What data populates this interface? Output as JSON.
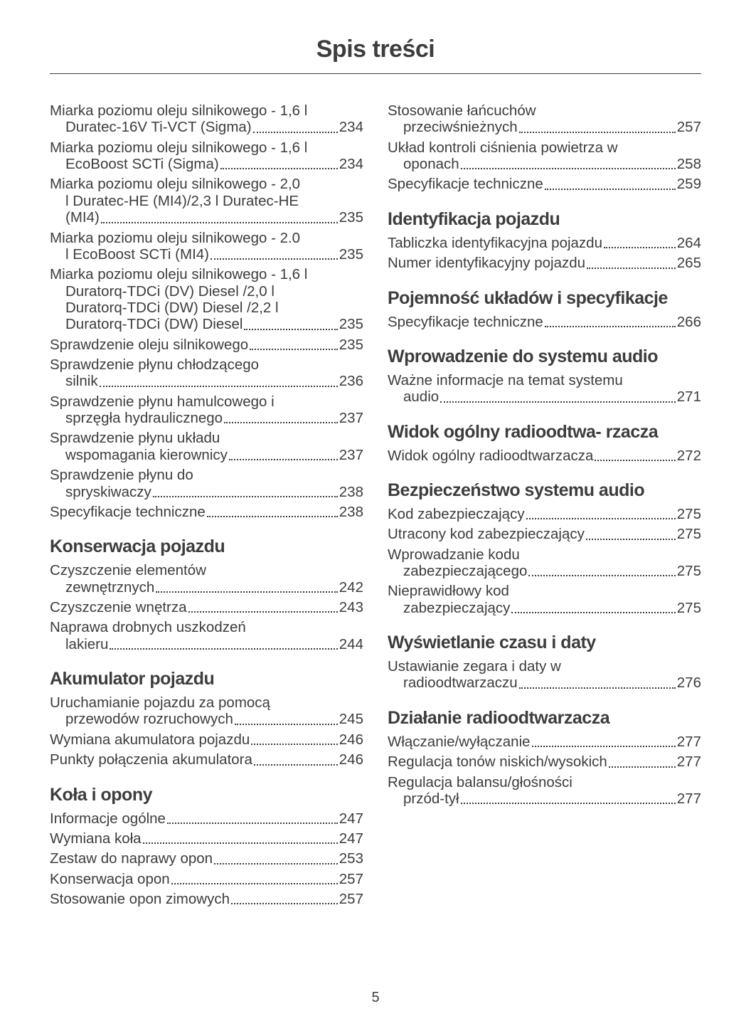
{
  "pageTitle": "Spis treści",
  "footerPage": "5",
  "leftSections": [
    {
      "heading": null,
      "entries": [
        {
          "lines": [
            "Miarka poziomu oleju silnikowego - 1,6 l"
          ],
          "last": "Duratec-16V Ti-VCT (Sigma)",
          "page": "234"
        },
        {
          "lines": [
            "Miarka poziomu oleju silnikowego - 1,6 l"
          ],
          "last": "EcoBoost SCTi (Sigma)",
          "page": "234"
        },
        {
          "lines": [
            "Miarka poziomu oleju silnikowego - 2,0",
            "l Duratec-HE (MI4)/2,3 l Duratec-HE"
          ],
          "last": "(MI4)",
          "page": "235"
        },
        {
          "lines": [
            "Miarka poziomu oleju silnikowego - 2.0"
          ],
          "last": "l EcoBoost SCTi (MI4)",
          "page": "235"
        },
        {
          "lines": [
            "Miarka poziomu oleju silnikowego - 1,6 l",
            "Duratorq-TDCi (DV) Diesel /2,0 l",
            "Duratorq-TDCi (DW) Diesel /2,2 l"
          ],
          "last": "Duratorq-TDCi (DW) Diesel ",
          "page": "235"
        },
        {
          "lines": [],
          "last": "Sprawdzenie oleju silnikowego",
          "noIndent": true,
          "page": "235"
        },
        {
          "lines": [
            "Sprawdzenie płynu chłodzącego"
          ],
          "last": "silnik",
          "page": "236"
        },
        {
          "lines": [
            "Sprawdzenie płynu hamulcowego i"
          ],
          "last": "sprzęgła hydraulicznego",
          "page": "237"
        },
        {
          "lines": [
            "Sprawdzenie płynu układu"
          ],
          "last": "wspomagania kierownicy",
          "page": "237"
        },
        {
          "lines": [
            "Sprawdzenie płynu do"
          ],
          "last": "spryskiwaczy",
          "page": "238"
        },
        {
          "lines": [],
          "last": "Specyfikacje techniczne",
          "noIndent": true,
          "page": "238"
        }
      ]
    },
    {
      "heading": "Konserwacja pojazdu",
      "entries": [
        {
          "lines": [
            "Czyszczenie elementów"
          ],
          "last": "zewnętrznych",
          "page": "242"
        },
        {
          "lines": [],
          "last": "Czyszczenie wnętrza",
          "noIndent": true,
          "page": "243"
        },
        {
          "lines": [
            "Naprawa drobnych uszkodzeń"
          ],
          "last": "lakieru",
          "page": "244"
        }
      ]
    },
    {
      "heading": "Akumulator pojazdu",
      "entries": [
        {
          "lines": [
            "Uruchamianie pojazdu za pomocą"
          ],
          "last": "przewodów rozruchowych",
          "page": "245"
        },
        {
          "lines": [],
          "last": "Wymiana akumulatora pojazdu",
          "noIndent": true,
          "page": "246"
        },
        {
          "lines": [],
          "last": "Punkty połączenia akumulatora ",
          "noIndent": true,
          "page": "246"
        }
      ]
    },
    {
      "heading": "Koła i opony",
      "entries": [
        {
          "lines": [],
          "last": "Informacje ogólne",
          "noIndent": true,
          "page": "247"
        },
        {
          "lines": [],
          "last": "Wymiana koła",
          "noIndent": true,
          "page": "247"
        },
        {
          "lines": [],
          "last": "Zestaw do naprawy opon",
          "noIndent": true,
          "page": "253"
        },
        {
          "lines": [],
          "last": "Konserwacja opon",
          "noIndent": true,
          "page": "257"
        },
        {
          "lines": [],
          "last": "Stosowanie opon zimowych",
          "noIndent": true,
          "page": "257"
        }
      ]
    }
  ],
  "rightSections": [
    {
      "heading": null,
      "entries": [
        {
          "lines": [
            "Stosowanie łańcuchów"
          ],
          "last": "przeciwśnieżnych",
          "page": "257"
        },
        {
          "lines": [
            "Układ kontroli ciśnienia powietrza w"
          ],
          "last": "oponach",
          "page": "258"
        },
        {
          "lines": [],
          "last": "Specyfikacje techniczne",
          "noIndent": true,
          "page": "259"
        }
      ]
    },
    {
      "heading": "Identyfikacja pojazdu",
      "entries": [
        {
          "lines": [],
          "last": "Tabliczka identyfikacyjna pojazdu",
          "noIndent": true,
          "page": "264"
        },
        {
          "lines": [],
          "last": "Numer identyfikacyjny pojazdu",
          "noIndent": true,
          "page": "265"
        }
      ]
    },
    {
      "heading": "Pojemność układów i specyfikacje",
      "headingIndent": true,
      "entries": [
        {
          "lines": [],
          "last": "Specyfikacje techniczne",
          "noIndent": true,
          "page": "266"
        }
      ]
    },
    {
      "heading": "Wprowadzenie do systemu audio",
      "headingIndent": true,
      "entries": [
        {
          "lines": [
            "Ważne informacje na temat systemu"
          ],
          "last": "audio",
          "page": "271"
        }
      ]
    },
    {
      "heading": "Widok ogólny radioodtwa- rzacza",
      "headingIndent": true,
      "entries": [
        {
          "lines": [],
          "last": "Widok ogólny radioodtwarzacza",
          "noIndent": true,
          "page": "272"
        }
      ]
    },
    {
      "heading": "Bezpieczeństwo systemu audio",
      "headingIndent": true,
      "entries": [
        {
          "lines": [],
          "last": "Kod zabezpieczający",
          "noIndent": true,
          "page": "275"
        },
        {
          "lines": [],
          "last": "Utracony kod zabezpieczający",
          "noIndent": true,
          "page": "275"
        },
        {
          "lines": [
            "Wprowadzanie kodu"
          ],
          "last": "zabezpieczającego",
          "page": "275"
        },
        {
          "lines": [
            "Nieprawidłowy kod"
          ],
          "last": "zabezpieczający",
          "page": "275"
        }
      ]
    },
    {
      "heading": "Wyświetlanie czasu i daty",
      "entries": [
        {
          "lines": [
            "Ustawianie zegara i daty w"
          ],
          "last": "radioodtwarzaczu",
          "page": "276"
        }
      ]
    },
    {
      "heading": "Działanie radioodtwarzacza",
      "entries": [
        {
          "lines": [],
          "last": "Włączanie/wyłączanie",
          "noIndent": true,
          "page": "277"
        },
        {
          "lines": [],
          "last": "Regulacja tonów niskich/wysokich",
          "noIndent": true,
          "page": "277"
        },
        {
          "lines": [
            "Regulacja balansu/głośności"
          ],
          "last": "przód-tył",
          "page": "277"
        }
      ]
    }
  ]
}
